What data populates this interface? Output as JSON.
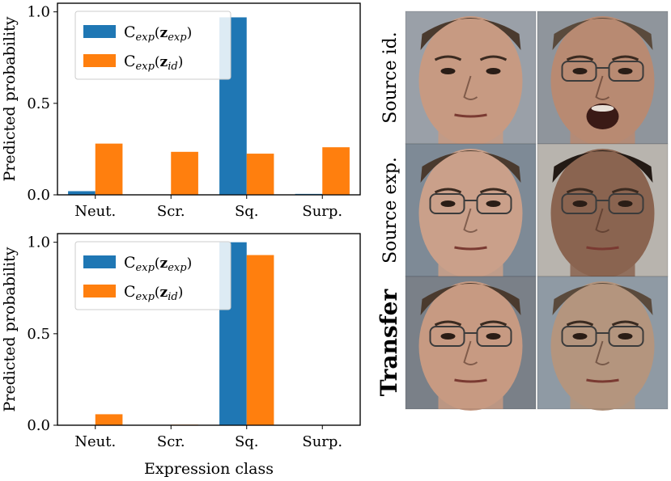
{
  "chart_data": [
    {
      "type": "bar",
      "categories": [
        "Neut.",
        "Scr.",
        "Sq.",
        "Surp."
      ],
      "series": [
        {
          "name": "C_exp(z_exp)",
          "color": "#1f77b4",
          "values": [
            0.02,
            0.0,
            0.97,
            0.005
          ]
        },
        {
          "name": "C_exp(z_id)",
          "color": "#ff7f0e",
          "values": [
            0.28,
            0.235,
            0.225,
            0.26
          ]
        }
      ],
      "title": "",
      "xlabel": "",
      "ylabel": "Predicted probability",
      "ylim": [
        0,
        1
      ],
      "yticks": [
        "0.0",
        "0.5",
        "1.0"
      ],
      "legend": "top-left",
      "legend_labels": [
        {
          "main": "C",
          "sub": "exp",
          "open": "(",
          "vec": "z",
          "vsub": "exp",
          "close": ")"
        },
        {
          "main": "C",
          "sub": "exp",
          "open": "(",
          "vec": "z",
          "vsub": "id",
          "close": ")"
        }
      ]
    },
    {
      "type": "bar",
      "categories": [
        "Neut.",
        "Scr.",
        "Sq.",
        "Surp."
      ],
      "series": [
        {
          "name": "C_exp(z_exp)",
          "color": "#1f77b4",
          "values": [
            0.0,
            0.0,
            1.0,
            0.0
          ]
        },
        {
          "name": "C_exp(z_id)",
          "color": "#ff7f0e",
          "values": [
            0.06,
            0.003,
            0.93,
            0.002
          ]
        }
      ],
      "title": "",
      "xlabel": "Expression class",
      "ylabel": "Predicted probability",
      "ylim": [
        0,
        1
      ],
      "yticks": [
        "0.0",
        "0.5",
        "1.0"
      ],
      "legend": "top-left",
      "legend_labels": [
        {
          "main": "C",
          "sub": "exp",
          "open": "(",
          "vec": "z",
          "vsub": "exp",
          "close": ")"
        },
        {
          "main": "C",
          "sub": "exp",
          "open": "(",
          "vec": "z",
          "vsub": "id",
          "close": ")"
        }
      ]
    }
  ],
  "faces_panel": {
    "row_labels": [
      "Source id.",
      "Source exp.",
      "Transfer"
    ],
    "rows": [
      {
        "faces": [
          {
            "skin": "#c79a82",
            "hair": "#4a3a2e",
            "mouth": "neutral",
            "glasses": false,
            "bg": "#9aa0a8"
          },
          {
            "skin": "#b88a72",
            "hair": "#5a4a3c",
            "mouth": "open",
            "glasses": true,
            "bg": "#8f959c"
          }
        ]
      },
      {
        "faces": [
          {
            "skin": "#caa08a",
            "hair": "#4a3a2e",
            "mouth": "neutral",
            "glasses": true,
            "bg": "#7e8a96"
          },
          {
            "skin": "#8a6450",
            "hair": "#231a15",
            "mouth": "neutral",
            "glasses": true,
            "bg": "#b8b4ae"
          }
        ]
      },
      {
        "faces": [
          {
            "skin": "#c79a82",
            "hair": "#4a3a2e",
            "mouth": "neutral",
            "glasses": true,
            "bg": "#7a8088"
          },
          {
            "skin": "#b4957e",
            "hair": "#5a4a3c",
            "mouth": "neutral",
            "glasses": true,
            "bg": "#8f9aa4"
          }
        ]
      }
    ]
  }
}
